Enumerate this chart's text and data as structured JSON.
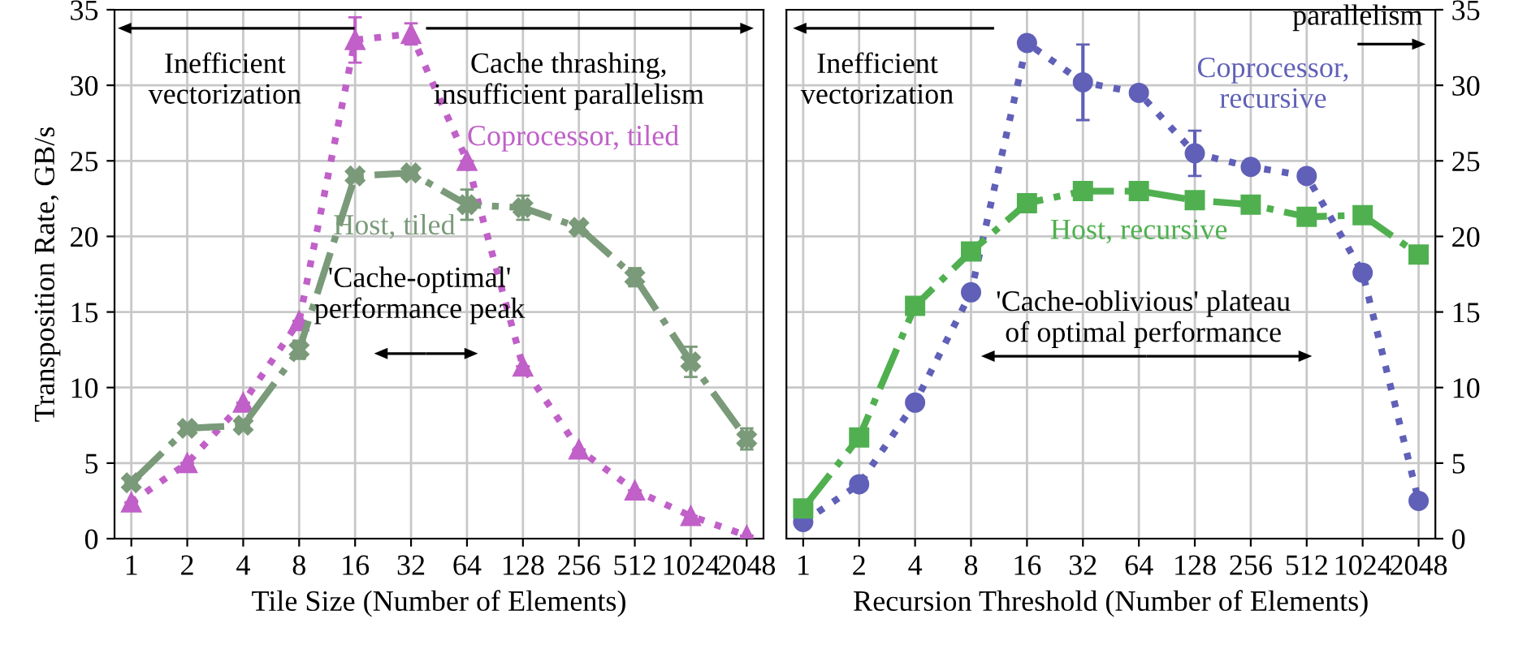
{
  "chart_data": [
    {
      "type": "line",
      "xlabel": "Tile Size (Number of Elements)",
      "ylabel": "Transposition Rate, GB/s",
      "categories": [
        "1",
        "2",
        "4",
        "8",
        "16",
        "32",
        "64",
        "128",
        "256",
        "512",
        "1024",
        "2048"
      ],
      "ylim": [
        0,
        35
      ],
      "yticks": [
        0,
        5,
        10,
        15,
        20,
        25,
        30,
        35
      ],
      "grid": true,
      "legend": false,
      "series": [
        {
          "name": "Coprocessor, tiled",
          "color": "#c060c8",
          "marker": "triangle",
          "line_style": "dotted",
          "values": [
            2.4,
            5.0,
            9.0,
            14.4,
            33.0,
            33.4,
            25.0,
            11.4,
            5.9,
            3.2,
            1.5,
            0.2
          ],
          "errors": [
            null,
            null,
            null,
            null,
            1.5,
            0.7,
            null,
            null,
            null,
            null,
            null,
            null
          ]
        },
        {
          "name": "Host, tiled",
          "color": "#7a9a7a",
          "marker": "cross",
          "line_style": "dashdot",
          "values": [
            3.7,
            7.3,
            7.5,
            12.5,
            24.0,
            24.2,
            22.1,
            21.9,
            20.6,
            17.3,
            11.7,
            6.6
          ],
          "errors": [
            null,
            null,
            null,
            0.6,
            null,
            null,
            1.0,
            0.8,
            null,
            0.6,
            1.0,
            0.7
          ]
        }
      ],
      "annotations": [
        "Inefficient\nvectorization",
        "Cache thrashing,\ninsufficient parallelism",
        "'Cache-optimal'\nperformance peak"
      ]
    },
    {
      "type": "line",
      "xlabel": "Recursion Threshold (Number of Elements)",
      "categories": [
        "1",
        "2",
        "4",
        "8",
        "16",
        "32",
        "64",
        "128",
        "256",
        "512",
        "1024",
        "2048"
      ],
      "ylim": [
        0,
        35
      ],
      "yticks": [
        0,
        5,
        10,
        15,
        20,
        25,
        30,
        35
      ],
      "grid": true,
      "legend": false,
      "series": [
        {
          "name": "Coprocessor,\nrecursive",
          "color": "#6060b8",
          "marker": "circle",
          "line_style": "dotted",
          "values": [
            1.1,
            3.6,
            9.0,
            16.3,
            32.8,
            30.2,
            29.5,
            25.5,
            24.6,
            24.0,
            17.6,
            2.5
          ],
          "errors": [
            null,
            null,
            null,
            null,
            null,
            2.5,
            null,
            1.5,
            null,
            null,
            null,
            null
          ]
        },
        {
          "name": "Host, recursive",
          "color": "#50b050",
          "marker": "square",
          "line_style": "dashdot",
          "values": [
            2.0,
            6.7,
            15.4,
            19.0,
            22.2,
            23.0,
            23.0,
            22.4,
            22.1,
            21.3,
            21.4,
            18.8
          ]
        }
      ],
      "annotations": [
        "Inefficient\nvectorization",
        "parallelism",
        "'Cache-oblivious' plateau\nof optimal performance"
      ]
    }
  ]
}
